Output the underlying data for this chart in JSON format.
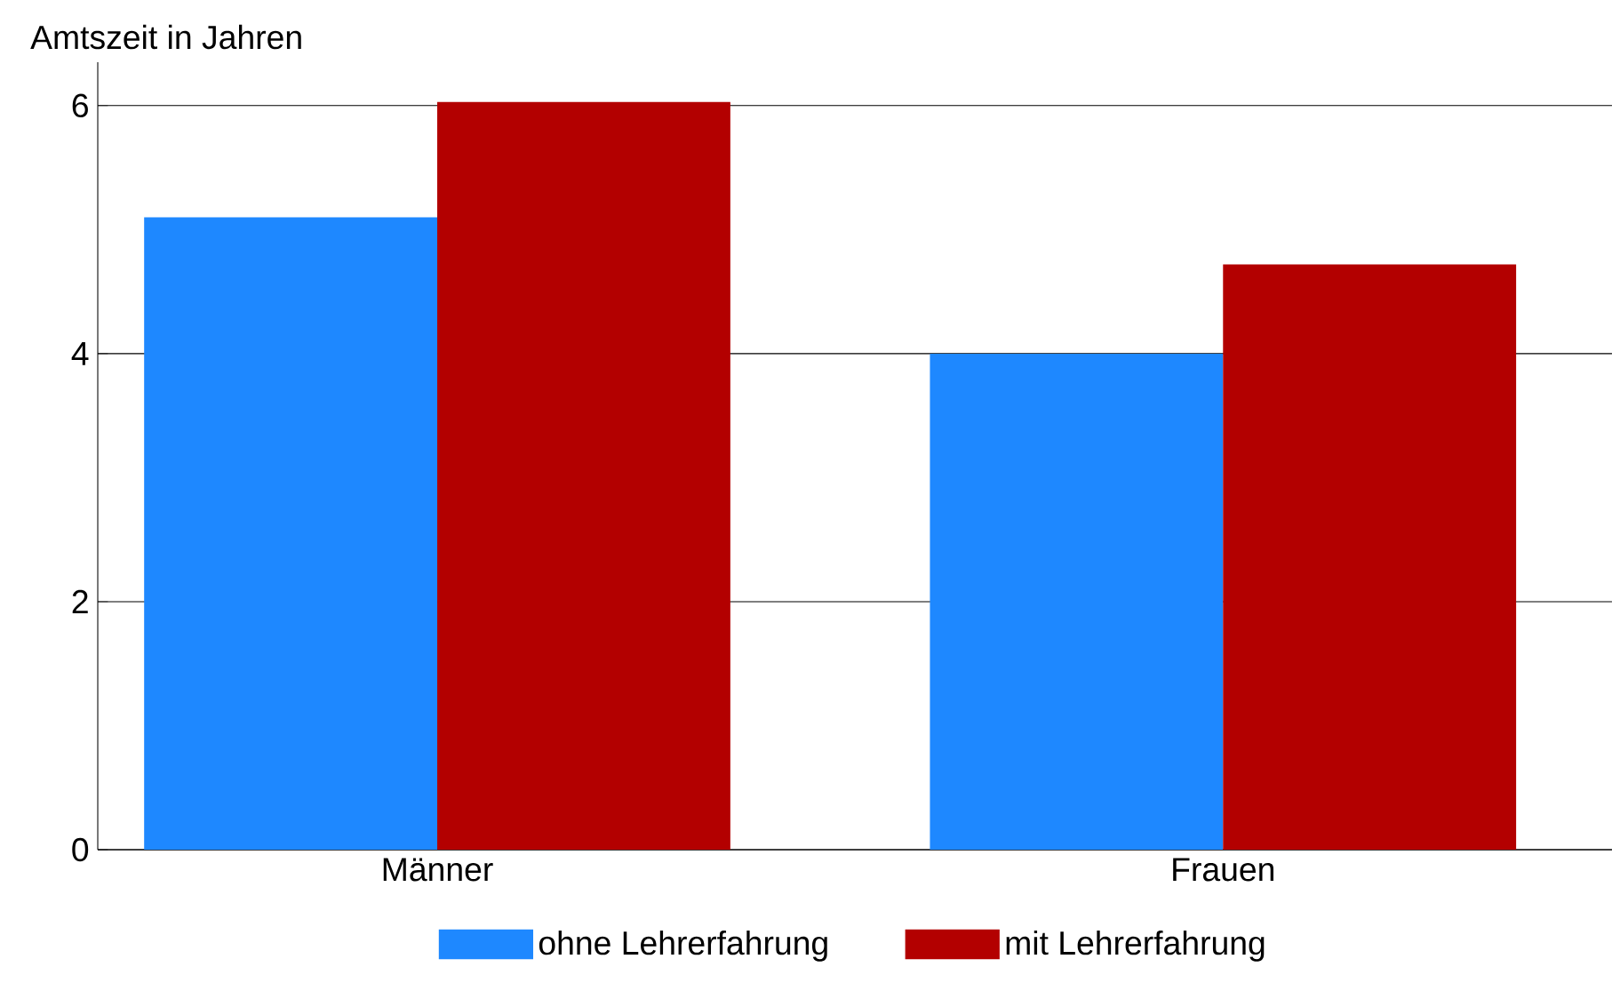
{
  "chart_data": {
    "type": "bar",
    "ylabel": "Amtszeit in Jahren",
    "categories": [
      "Männer",
      "Frauen"
    ],
    "series": [
      {
        "name": "ohne Lehrerfahrung",
        "color": "#1e88ff",
        "values": [
          5.1,
          4.0
        ]
      },
      {
        "name": "mit Lehrerfahrung",
        "color": "#b30000",
        "values": [
          6.03,
          4.72
        ]
      }
    ],
    "ylim": [
      0,
      6.35
    ],
    "yticks": [
      0,
      2,
      4,
      6
    ],
    "grid": "y",
    "legend": "bottom"
  }
}
